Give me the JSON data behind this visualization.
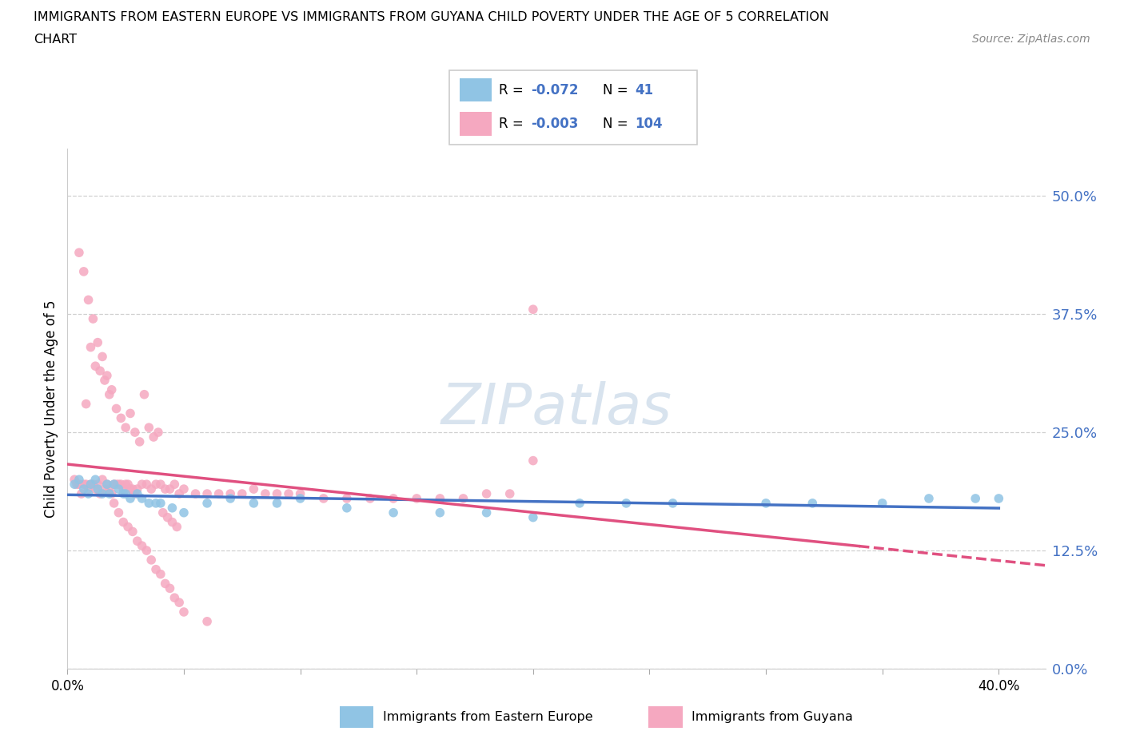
{
  "title_line1": "IMMIGRANTS FROM EASTERN EUROPE VS IMMIGRANTS FROM GUYANA CHILD POVERTY UNDER THE AGE OF 5 CORRELATION",
  "title_line2": "CHART",
  "source": "Source: ZipAtlas.com",
  "ylabel": "Child Poverty Under the Age of 5",
  "xlim": [
    0.0,
    0.42
  ],
  "ylim": [
    0.0,
    0.55
  ],
  "ytick_vals": [
    0.0,
    0.125,
    0.25,
    0.375,
    0.5
  ],
  "xtick_vals": [
    0.0,
    0.05,
    0.1,
    0.15,
    0.2,
    0.25,
    0.3,
    0.35,
    0.4
  ],
  "xtick_labels": [
    "0.0%",
    "",
    "",
    "",
    "",
    "",
    "",
    "",
    "40.0%"
  ],
  "blue_R": -0.072,
  "blue_N": 41,
  "pink_R": -0.003,
  "pink_N": 104,
  "blue_dot_color": "#90c4e4",
  "pink_dot_color": "#f5a8c0",
  "blue_line_color": "#4472c4",
  "pink_line_color": "#e05080",
  "grid_color": "#d0d0d0",
  "watermark": "ZIPatlas",
  "blue_label": "Immigrants from Eastern Europe",
  "pink_label": "Immigrants from Guyana",
  "blue_x": [
    0.003,
    0.005,
    0.007,
    0.009,
    0.01,
    0.012,
    0.013,
    0.015,
    0.017,
    0.018,
    0.02,
    0.022,
    0.024,
    0.025,
    0.027,
    0.03,
    0.032,
    0.035,
    0.038,
    0.04,
    0.045,
    0.05,
    0.06,
    0.07,
    0.08,
    0.09,
    0.1,
    0.12,
    0.14,
    0.16,
    0.18,
    0.2,
    0.22,
    0.24,
    0.26,
    0.3,
    0.32,
    0.35,
    0.37,
    0.39,
    0.4
  ],
  "blue_y": [
    0.195,
    0.2,
    0.19,
    0.185,
    0.195,
    0.2,
    0.19,
    0.185,
    0.195,
    0.185,
    0.195,
    0.19,
    0.185,
    0.185,
    0.18,
    0.185,
    0.18,
    0.175,
    0.175,
    0.175,
    0.17,
    0.165,
    0.175,
    0.18,
    0.175,
    0.175,
    0.18,
    0.17,
    0.165,
    0.165,
    0.165,
    0.16,
    0.175,
    0.175,
    0.175,
    0.175,
    0.175,
    0.175,
    0.18,
    0.18,
    0.18
  ],
  "pink_x": [
    0.003,
    0.004,
    0.005,
    0.006,
    0.007,
    0.008,
    0.009,
    0.01,
    0.011,
    0.012,
    0.013,
    0.014,
    0.015,
    0.016,
    0.017,
    0.018,
    0.019,
    0.02,
    0.021,
    0.022,
    0.023,
    0.024,
    0.025,
    0.026,
    0.027,
    0.028,
    0.029,
    0.03,
    0.032,
    0.034,
    0.036,
    0.038,
    0.04,
    0.042,
    0.044,
    0.046,
    0.048,
    0.05,
    0.055,
    0.06,
    0.065,
    0.07,
    0.075,
    0.08,
    0.085,
    0.09,
    0.095,
    0.1,
    0.11,
    0.12,
    0.13,
    0.14,
    0.15,
    0.16,
    0.17,
    0.18,
    0.19,
    0.2,
    0.005,
    0.007,
    0.009,
    0.011,
    0.013,
    0.015,
    0.017,
    0.019,
    0.021,
    0.023,
    0.025,
    0.027,
    0.029,
    0.031,
    0.033,
    0.035,
    0.037,
    0.039,
    0.041,
    0.043,
    0.045,
    0.047,
    0.008,
    0.01,
    0.012,
    0.014,
    0.016,
    0.018,
    0.02,
    0.022,
    0.024,
    0.026,
    0.028,
    0.03,
    0.032,
    0.034,
    0.036,
    0.038,
    0.04,
    0.042,
    0.044,
    0.046,
    0.048,
    0.05,
    0.06,
    0.2
  ],
  "pink_y": [
    0.2,
    0.195,
    0.195,
    0.185,
    0.195,
    0.195,
    0.19,
    0.195,
    0.195,
    0.19,
    0.195,
    0.185,
    0.2,
    0.19,
    0.195,
    0.19,
    0.185,
    0.195,
    0.195,
    0.195,
    0.195,
    0.19,
    0.195,
    0.195,
    0.19,
    0.19,
    0.185,
    0.19,
    0.195,
    0.195,
    0.19,
    0.195,
    0.195,
    0.19,
    0.19,
    0.195,
    0.185,
    0.19,
    0.185,
    0.185,
    0.185,
    0.185,
    0.185,
    0.19,
    0.185,
    0.185,
    0.185,
    0.185,
    0.18,
    0.18,
    0.18,
    0.18,
    0.18,
    0.18,
    0.18,
    0.185,
    0.185,
    0.22,
    0.44,
    0.42,
    0.39,
    0.37,
    0.345,
    0.33,
    0.31,
    0.295,
    0.275,
    0.265,
    0.255,
    0.27,
    0.25,
    0.24,
    0.29,
    0.255,
    0.245,
    0.25,
    0.165,
    0.16,
    0.155,
    0.15,
    0.28,
    0.34,
    0.32,
    0.315,
    0.305,
    0.29,
    0.175,
    0.165,
    0.155,
    0.15,
    0.145,
    0.135,
    0.13,
    0.125,
    0.115,
    0.105,
    0.1,
    0.09,
    0.085,
    0.075,
    0.07,
    0.06,
    0.05,
    0.38
  ]
}
